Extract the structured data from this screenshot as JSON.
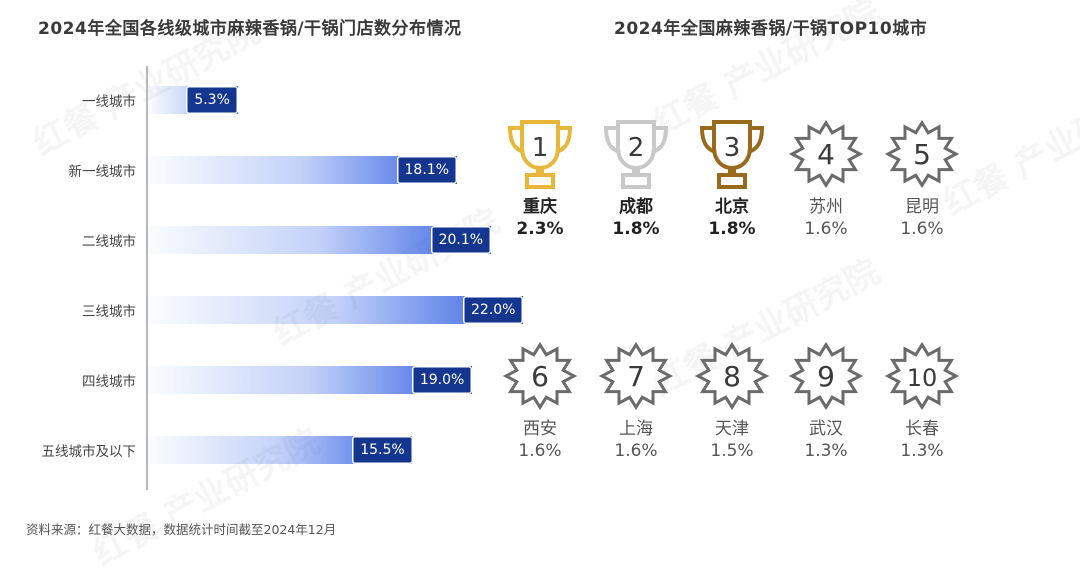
{
  "left_chart": {
    "title": "2024年全国各线级城市麻辣香锅/干锅门店数分布情况"
  },
  "right_panel": {
    "title": "2024年全国麻辣香锅/干锅TOP10城市",
    "colors": {
      "gold": "#e8b73a",
      "silver": "#c8c8c8",
      "bronze": "#9a6a1c",
      "badge": "#6b6b6b"
    },
    "items": [
      {
        "rank": "1",
        "city": "重庆",
        "share": "2.3%",
        "icon": "gold-trophy-icon"
      },
      {
        "rank": "2",
        "city": "成都",
        "share": "1.8%",
        "icon": "silver-trophy-icon"
      },
      {
        "rank": "3",
        "city": "北京",
        "share": "1.8%",
        "icon": "bronze-trophy-icon"
      },
      {
        "rank": "4",
        "city": "苏州",
        "share": "1.6%",
        "icon": "star-badge-icon"
      },
      {
        "rank": "5",
        "city": "昆明",
        "share": "1.6%",
        "icon": "star-badge-icon"
      },
      {
        "rank": "6",
        "city": "西安",
        "share": "1.6%",
        "icon": "star-badge-icon"
      },
      {
        "rank": "7",
        "city": "上海",
        "share": "1.6%",
        "icon": "star-badge-icon"
      },
      {
        "rank": "8",
        "city": "天津",
        "share": "1.5%",
        "icon": "star-badge-icon"
      },
      {
        "rank": "9",
        "city": "武汉",
        "share": "1.3%",
        "icon": "star-badge-icon"
      },
      {
        "rank": "10",
        "city": "长春",
        "share": "1.3%",
        "icon": "star-badge-icon"
      }
    ]
  },
  "chart_data": {
    "type": "bar",
    "orientation": "horizontal",
    "title": "2024年全国各线级城市麻辣香锅/干锅门店数分布情况",
    "categories": [
      "一线城市",
      "新一线城市",
      "二线城市",
      "三线城市",
      "四线城市",
      "五线城市及以下"
    ],
    "values": [
      5.3,
      18.1,
      20.1,
      22.0,
      19.0,
      15.5
    ],
    "value_labels": [
      "5.3%",
      "18.1%",
      "20.1%",
      "22.0%",
      "19.0%",
      "15.5%"
    ],
    "unit": "%",
    "xlim": [
      0,
      22.0
    ],
    "grid": false,
    "colors": {
      "bar": "#3567e8",
      "label_bg": "#14368f"
    }
  },
  "watermark": "红餐 产业研究院",
  "source": "资料来源：红餐大数据，数据统计时间截至2024年12月"
}
